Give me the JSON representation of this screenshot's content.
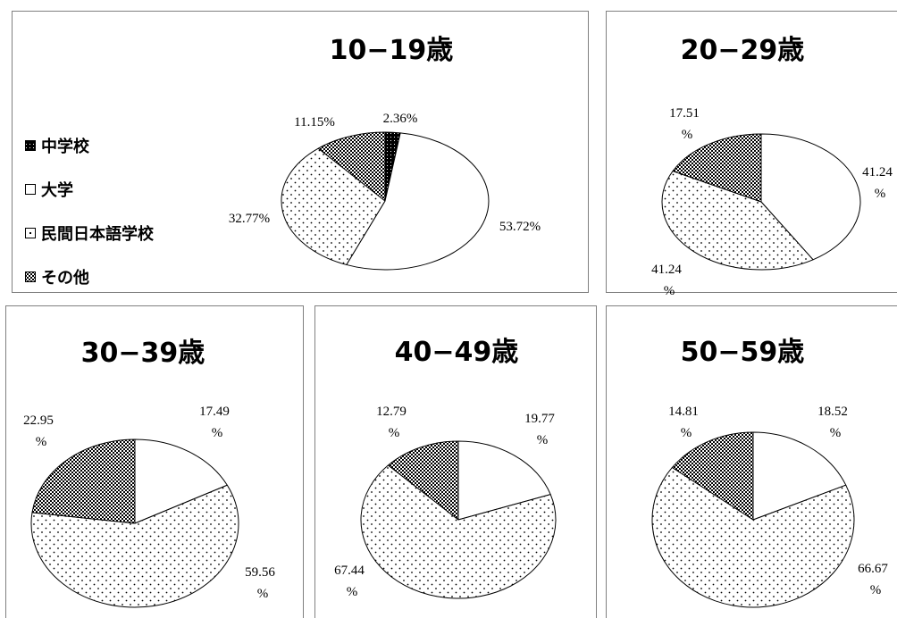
{
  "colors": {
    "background": "#ffffff",
    "panel_border": "#808080",
    "slice_stroke": "#000000"
  },
  "patterns": [
    "black-dotted",
    "white",
    "white-dotted",
    "checkered"
  ],
  "chart_data": [
    {
      "type": "pie",
      "title": "10−19歳",
      "legend_position": "left",
      "categories": [
        "中学校",
        "大学",
        "民間日本語学校",
        "その他"
      ],
      "values": [
        2.36,
        53.72,
        32.77,
        11.15
      ],
      "labels": [
        [
          "2.36%"
        ],
        [
          "53.72%"
        ],
        [
          "32.77%"
        ],
        [
          "11.15%"
        ]
      ]
    },
    {
      "type": "pie",
      "title": "20−29歳",
      "values": [
        0,
        41.24,
        41.24,
        17.51
      ],
      "labels": [
        null,
        [
          "41.24",
          "%"
        ],
        [
          "41.24",
          "%"
        ],
        [
          "17.51",
          "%"
        ]
      ]
    },
    {
      "type": "pie",
      "title": "30−39歳",
      "values": [
        0,
        17.49,
        59.56,
        22.95
      ],
      "labels": [
        null,
        [
          "17.49",
          "%"
        ],
        [
          "59.56",
          "%"
        ],
        [
          "22.95",
          "%"
        ]
      ]
    },
    {
      "type": "pie",
      "title": "40−49歳",
      "values": [
        0,
        19.77,
        67.44,
        12.79
      ],
      "labels": [
        null,
        [
          "19.77",
          "%"
        ],
        [
          "67.44",
          "%"
        ],
        [
          "12.79",
          "%"
        ]
      ]
    },
    {
      "type": "pie",
      "title": "50−59歳",
      "values": [
        0,
        18.52,
        66.67,
        14.81
      ],
      "labels": [
        null,
        [
          "18.52",
          "%"
        ],
        [
          "66.67",
          "%"
        ],
        [
          "14.81",
          "%"
        ]
      ]
    }
  ]
}
